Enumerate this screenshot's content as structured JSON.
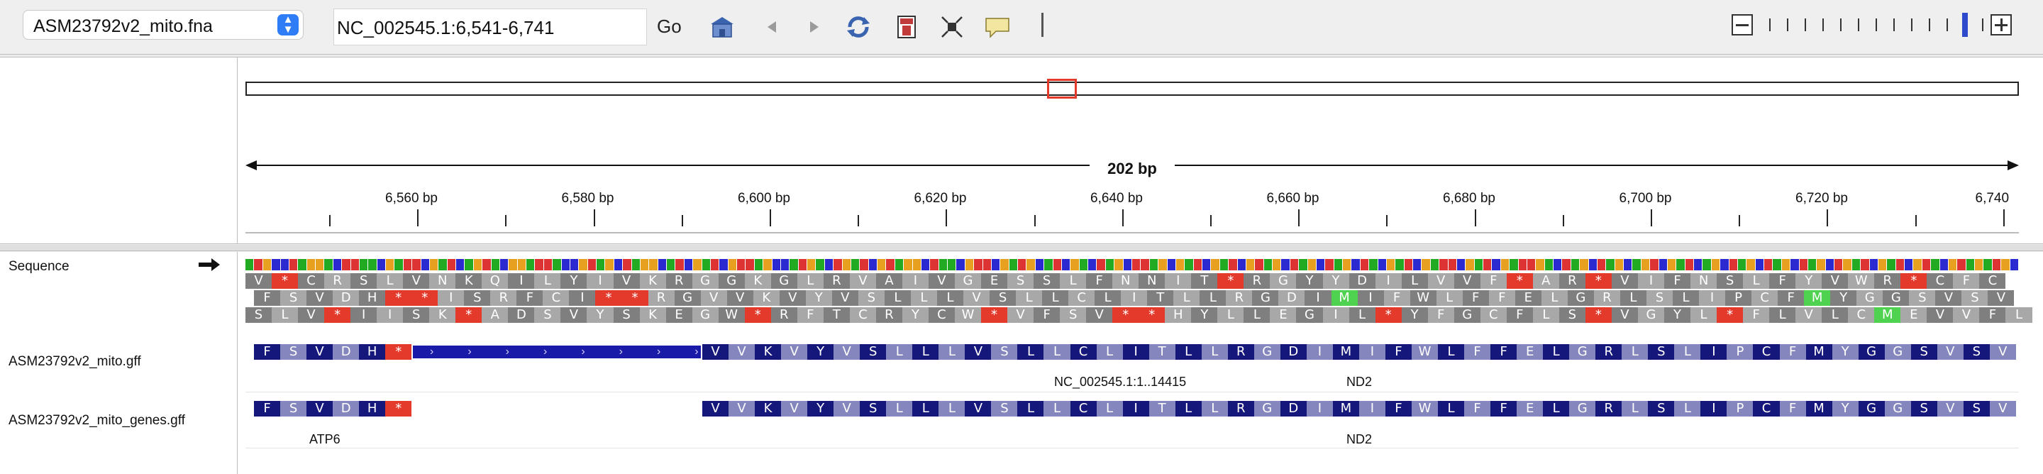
{
  "toolbar": {
    "genome": "ASM23792v2_mito.fna",
    "locus": "NC_002545.1:6,541-6,741",
    "go_label": "Go",
    "icons": [
      "home-icon",
      "back-icon",
      "forward-icon",
      "refresh-icon",
      "roi-icon",
      "fit-icon",
      "popup-icon",
      "divider"
    ],
    "zoom_level": 11,
    "zoom_max": 14
  },
  "ruler": {
    "span_label": "202 bp",
    "ticks": [
      "6,560 bp",
      "6,580 bp",
      "6,600 bp",
      "6,620 bp",
      "6,640 bp",
      "6,660 bp",
      "6,680 bp",
      "6,700 bp",
      "6,720 bp",
      "6,740"
    ]
  },
  "tracks": {
    "sequence": {
      "label": "Sequence"
    },
    "gff": {
      "label": "ASM23792v2_mito.gff",
      "feature1": "NC_002545.1:1..14415",
      "feature2": "ND2"
    },
    "genes": {
      "label": "ASM23792v2_mito_genes.gff",
      "feature1": "ATP6",
      "feature2": "ND2"
    }
  },
  "translation": {
    "frame1": "V*CRSLVNKQILYIVKRGGKGLRVAIVGESSLFNNIT*RGYYDILVVF*AR*VIFNSLFYVWR*CFC",
    "frame2": "FSVDH**ISRFCI**RGVVKVYVSLLLVSLLCLITLLRGDIMIFWLFFELGRLSLIPCFMYGGSVSV",
    "frame3": "SLV*IISK*ADSVYSKEGW*RFTCRYCW*VFSV**HYLLEGIL*YFGCFLS*VGYL*FLVLCMEVVFL",
    "gff_left": "FSVDH*",
    "gff_right": "VVKVYVSLLLVSLLCLITLLRGDIMIFWLFFELGRLSLIPCFMYGGSVSV",
    "genes_left": "FSVDH*",
    "genes_right": "VVKVYVSLLLVSLLCLITLLRGDIMIFWLFFELGRLSLIPCFMYGGSVSV"
  },
  "colors": {
    "stop": "#e33a2c",
    "start": "#4fd24f",
    "codon_dark": "#7f7f7f",
    "codon_light": "#a8a8a8",
    "feature_dark": "#16177a",
    "feature_light": "#8486bd",
    "ideogram_box": "#e33a2c"
  }
}
